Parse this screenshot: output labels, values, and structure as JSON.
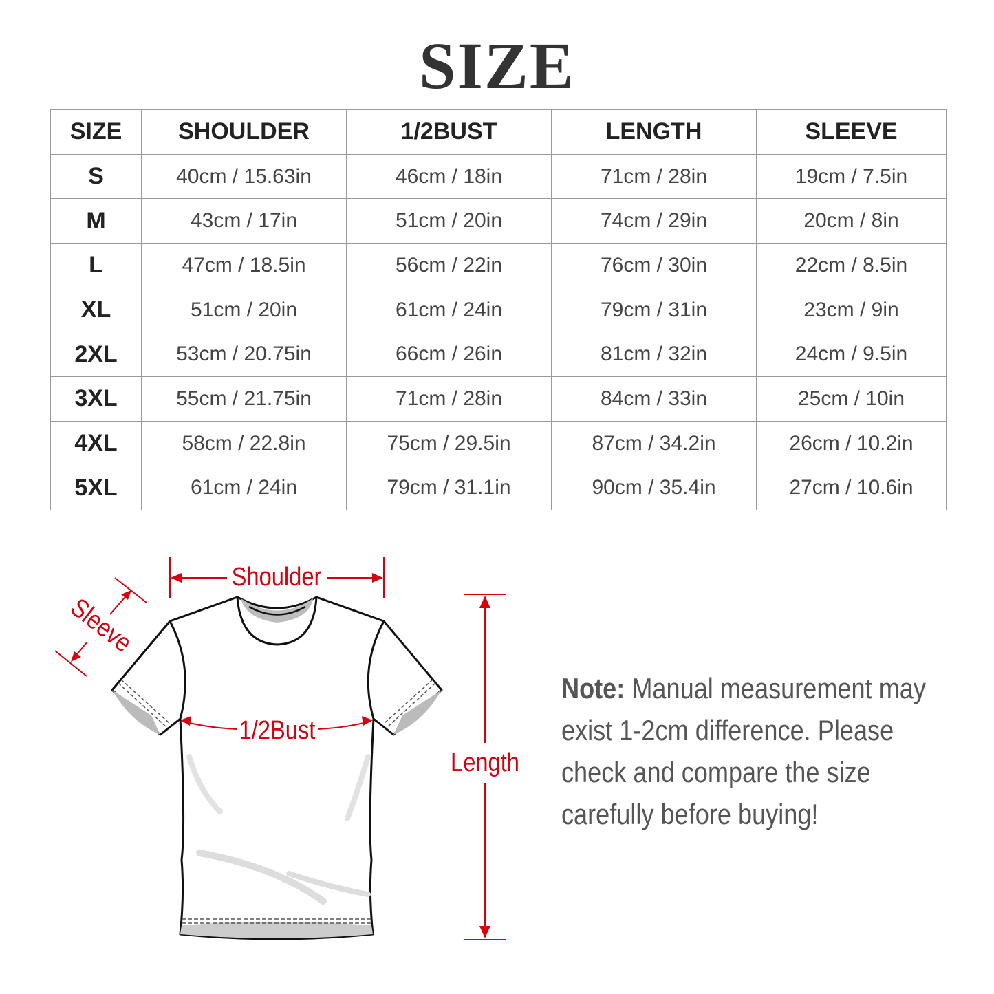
{
  "title": "SIZE",
  "table": {
    "headers": [
      "SIZE",
      "SHOULDER",
      "1/2BUST",
      "LENGTH",
      "SLEEVE"
    ],
    "rows": [
      [
        "S",
        "40cm / 15.63in",
        "46cm / 18in",
        "71cm / 28in",
        "19cm / 7.5in"
      ],
      [
        "M",
        "43cm / 17in",
        "51cm / 20in",
        "74cm / 29in",
        "20cm / 8in"
      ],
      [
        "L",
        "47cm / 18.5in",
        "56cm / 22in",
        "76cm / 30in",
        "22cm / 8.5in"
      ],
      [
        "XL",
        "51cm / 20in",
        "61cm / 24in",
        "79cm / 31in",
        "23cm / 9in"
      ],
      [
        "2XL",
        "53cm / 20.75in",
        "66cm / 26in",
        "81cm / 32in",
        "24cm / 9.5in"
      ],
      [
        "3XL",
        "55cm / 21.75in",
        "71cm / 28in",
        "84cm / 33in",
        "25cm / 10in"
      ],
      [
        "4XL",
        "58cm / 22.8in",
        "75cm / 29.5in",
        "87cm / 34.2in",
        "26cm / 10.2in"
      ],
      [
        "5XL",
        "61cm / 24in",
        "79cm / 31.1in",
        "90cm / 35.4in",
        "27cm / 10.6in"
      ]
    ]
  },
  "diagram": {
    "shoulder_label": "Shoulder",
    "sleeve_label": "Sleeve",
    "bust_label": "1/2Bust",
    "length_label": "Length",
    "accent_color": "#d6000f"
  },
  "note": {
    "label": "Note:",
    "text": " Manual measurement may exist 1-2cm difference. Please check and compare the size carefully before buying!"
  }
}
